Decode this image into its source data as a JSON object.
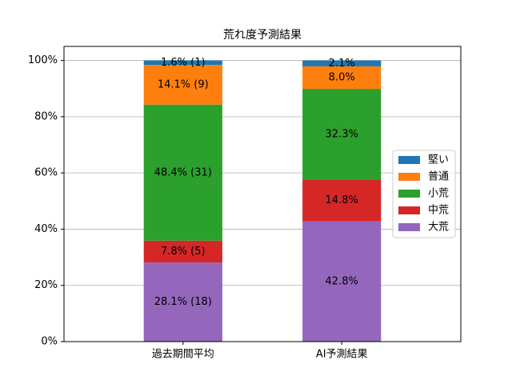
{
  "chart_data": {
    "type": "stacked_bar",
    "title": "荒れ度予測結果",
    "categories": [
      "過去期間平均",
      "AI予測結果"
    ],
    "series": [
      {
        "name": "大荒",
        "color": "#9467bd",
        "values": [
          28.1,
          42.8
        ],
        "value_labels": [
          "28.1% (18)",
          "42.8%"
        ]
      },
      {
        "name": "中荒",
        "color": "#d62728",
        "values": [
          7.8,
          14.8
        ],
        "value_labels": [
          "7.8% (5)",
          "14.8%"
        ]
      },
      {
        "name": "小荒",
        "color": "#2ca02c",
        "values": [
          48.4,
          32.3
        ],
        "value_labels": [
          "48.4% (31)",
          "32.3%"
        ]
      },
      {
        "name": "普通",
        "color": "#ff7f0e",
        "values": [
          14.1,
          8.0
        ],
        "value_labels": [
          "14.1% (9)",
          "8.0%"
        ]
      },
      {
        "name": "堅い",
        "color": "#1f77b4",
        "values": [
          1.6,
          2.1
        ],
        "value_labels": [
          "1.6% (1)",
          "2.1%"
        ]
      }
    ],
    "ylim": [
      0,
      105
    ],
    "yticks": [
      {
        "value": 0,
        "label": "0%"
      },
      {
        "value": 20,
        "label": "20%"
      },
      {
        "value": 40,
        "label": "40%"
      },
      {
        "value": 60,
        "label": "60%"
      },
      {
        "value": 80,
        "label": "80%"
      },
      {
        "value": 100,
        "label": "100%"
      }
    ],
    "grid": true,
    "legend": "right"
  }
}
